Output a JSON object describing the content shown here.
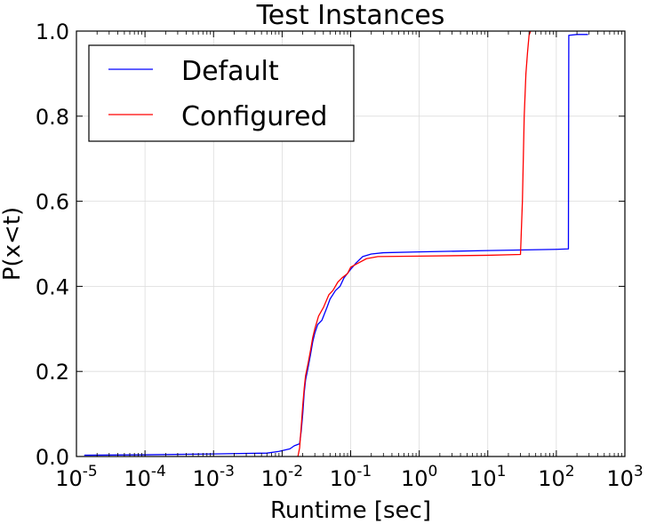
{
  "chart_data": {
    "type": "line",
    "title": "Test Instances",
    "xlabel": "Runtime [sec]",
    "ylabel": "P(x<t)",
    "xscale": "log",
    "xlim": [
      1e-05,
      1000
    ],
    "ylim": [
      0.0,
      1.0
    ],
    "xticks": [
      {
        "value": 1e-05,
        "base": "10",
        "exp": "-5"
      },
      {
        "value": 0.0001,
        "base": "10",
        "exp": "-4"
      },
      {
        "value": 0.001,
        "base": "10",
        "exp": "-3"
      },
      {
        "value": 0.01,
        "base": "10",
        "exp": "-2"
      },
      {
        "value": 0.1,
        "base": "10",
        "exp": "-1"
      },
      {
        "value": 1,
        "base": "10",
        "exp": "0"
      },
      {
        "value": 10,
        "base": "10",
        "exp": "1"
      },
      {
        "value": 100,
        "base": "10",
        "exp": "2"
      },
      {
        "value": 1000,
        "base": "10",
        "exp": "3"
      }
    ],
    "yticks": [
      {
        "value": 0.0,
        "label": "0.0"
      },
      {
        "value": 0.2,
        "label": "0.2"
      },
      {
        "value": 0.4,
        "label": "0.4"
      },
      {
        "value": 0.6,
        "label": "0.6"
      },
      {
        "value": 0.8,
        "label": "0.8"
      },
      {
        "value": 1.0,
        "label": "1.0"
      }
    ],
    "grid": true,
    "legend_position": "top-left",
    "series": [
      {
        "name": "Default",
        "color": "#0000ff",
        "points": [
          [
            1.3e-05,
            0.003
          ],
          [
            0.0001,
            0.004
          ],
          [
            0.001,
            0.006
          ],
          [
            0.006,
            0.008
          ],
          [
            0.009,
            0.012
          ],
          [
            0.013,
            0.018
          ],
          [
            0.015,
            0.025
          ],
          [
            0.018,
            0.03
          ],
          [
            0.019,
            0.06
          ],
          [
            0.02,
            0.1
          ],
          [
            0.021,
            0.15
          ],
          [
            0.022,
            0.18
          ],
          [
            0.024,
            0.21
          ],
          [
            0.026,
            0.24
          ],
          [
            0.028,
            0.27
          ],
          [
            0.03,
            0.29
          ],
          [
            0.033,
            0.31
          ],
          [
            0.038,
            0.32
          ],
          [
            0.045,
            0.35
          ],
          [
            0.05,
            0.37
          ],
          [
            0.06,
            0.39
          ],
          [
            0.07,
            0.4
          ],
          [
            0.08,
            0.42
          ],
          [
            0.1,
            0.44
          ],
          [
            0.12,
            0.455
          ],
          [
            0.15,
            0.47
          ],
          [
            0.2,
            0.476
          ],
          [
            0.3,
            0.479
          ],
          [
            1,
            0.481
          ],
          [
            10,
            0.484
          ],
          [
            100,
            0.487
          ],
          [
            150,
            0.488
          ],
          [
            152,
            0.99
          ],
          [
            200,
            0.992
          ],
          [
            290,
            0.992
          ]
        ]
      },
      {
        "name": "Configured",
        "color": "#ff0000",
        "points": [
          [
            0.017,
            0.0
          ],
          [
            0.018,
            0.02
          ],
          [
            0.019,
            0.07
          ],
          [
            0.02,
            0.12
          ],
          [
            0.021,
            0.16
          ],
          [
            0.022,
            0.19
          ],
          [
            0.024,
            0.22
          ],
          [
            0.026,
            0.25
          ],
          [
            0.028,
            0.28
          ],
          [
            0.03,
            0.3
          ],
          [
            0.034,
            0.33
          ],
          [
            0.04,
            0.35
          ],
          [
            0.048,
            0.38
          ],
          [
            0.055,
            0.39
          ],
          [
            0.065,
            0.41
          ],
          [
            0.075,
            0.42
          ],
          [
            0.09,
            0.43
          ],
          [
            0.1,
            0.445
          ],
          [
            0.13,
            0.455
          ],
          [
            0.17,
            0.465
          ],
          [
            0.25,
            0.47
          ],
          [
            1,
            0.471
          ],
          [
            10,
            0.473
          ],
          [
            30,
            0.475
          ],
          [
            32,
            0.6
          ],
          [
            34,
            0.8
          ],
          [
            36,
            0.9
          ],
          [
            38,
            0.95
          ],
          [
            40,
            0.99
          ],
          [
            42,
            1.0
          ]
        ]
      }
    ]
  }
}
